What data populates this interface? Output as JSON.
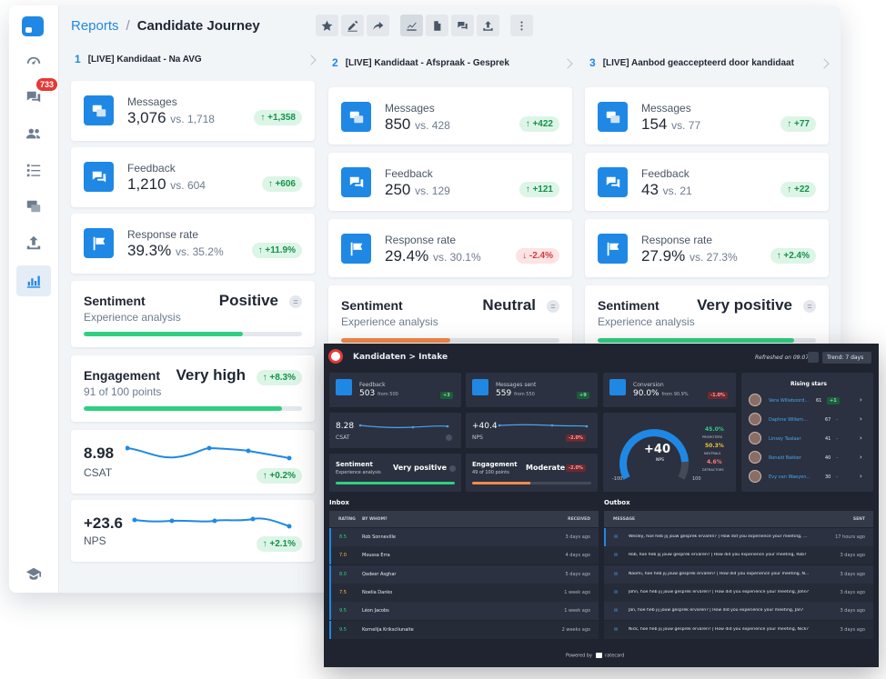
{
  "breadcrumb": {
    "link": "Reports",
    "separator": "/",
    "title": "Candidate Journey"
  },
  "sidebar": {
    "notification_count": "733"
  },
  "stages": [
    {
      "num": "1",
      "title": "[LIVE] Kandidaat - Na AVG"
    },
    {
      "num": "2",
      "title": "[LIVE] Kandidaat - Afspraak - Gesprek"
    },
    {
      "num": "3",
      "title": "[LIVE] Aanbod geaccepteerd door kandidaat"
    }
  ],
  "columns": [
    {
      "messages": {
        "label": "Messages",
        "value": "3,076",
        "vs": "vs. 1,718",
        "delta": "↑ +1,358"
      },
      "feedback": {
        "label": "Feedback",
        "value": "1,210",
        "vs": "vs. 604",
        "delta": "↑ +606"
      },
      "response": {
        "label": "Response rate",
        "value": "39.3%",
        "vs": "vs. 35.2%",
        "delta": "↑ +11.9%"
      },
      "sentiment": {
        "title": "Sentiment",
        "sub": "Experience analysis",
        "value": "Positive",
        "fill": 0.73
      },
      "engagement": {
        "title": "Engagement",
        "sub": "91 of 100 points",
        "value": "Very high",
        "delta": "↑ +8.3%",
        "fill": 0.91
      },
      "csat": {
        "value": "8.98",
        "label": "CSAT",
        "delta": "↑ +0.2%"
      },
      "nps": {
        "value": "+23.6",
        "label": "NPS",
        "delta": "↑ +2.1%"
      }
    },
    {
      "messages": {
        "label": "Messages",
        "value": "850",
        "vs": "vs. 428",
        "delta": "↑ +422"
      },
      "feedback": {
        "label": "Feedback",
        "value": "250",
        "vs": "vs. 129",
        "delta": "↑ +121"
      },
      "response": {
        "label": "Response rate",
        "value": "29.4%",
        "vs": "vs. 30.1%",
        "delta": "↓ -2.4%"
      },
      "sentiment": {
        "title": "Sentiment",
        "sub": "Experience analysis",
        "value": "Neutral",
        "fill": 0.5
      }
    },
    {
      "messages": {
        "label": "Messages",
        "value": "154",
        "vs": "vs. 77",
        "delta": "↑ +77"
      },
      "feedback": {
        "label": "Feedback",
        "value": "43",
        "vs": "vs. 21",
        "delta": "↑ +22"
      },
      "response": {
        "label": "Response rate",
        "value": "27.9%",
        "vs": "vs. 27.3%",
        "delta": "↑ +2.4%"
      },
      "sentiment": {
        "title": "Sentiment",
        "sub": "Experience analysis",
        "value": "Very positive",
        "fill": 0.9
      }
    }
  ],
  "dark": {
    "title": "Kandidaten > Intake",
    "refreshed": "Refreshed on 09:07:53",
    "trend": "Trend: 7 days",
    "feedback": {
      "label": "Feedback",
      "value": "503",
      "vs": "from 500",
      "delta": "+3"
    },
    "messages_sent": {
      "label": "Messages sent",
      "value": "559",
      "vs": "from 550",
      "delta": "+9"
    },
    "conversion": {
      "label": "Conversion",
      "value": "90.0%",
      "vs": "from 90.9%",
      "delta": "-1.0%"
    },
    "csat": {
      "value": "8.28",
      "label": "CSAT"
    },
    "nps_small": {
      "value": "+40.4",
      "label": "NPS",
      "delta": "-2.0%"
    },
    "sentiment": {
      "title": "Sentiment",
      "sub": "Experience analysis",
      "value": "Very positive"
    },
    "engagement": {
      "title": "Engagement",
      "sub": "49 of 100 points",
      "value": "Moderate",
      "delta": "-2.0%"
    },
    "gauge": {
      "value": "+40",
      "label": "NPS",
      "min": "-100",
      "max": "100",
      "promoters": "45.0%",
      "promoters_label": "PROMOTERS",
      "neutrals": "50.3%",
      "neutrals_label": "NEUTRALS",
      "detractors": "4.6%",
      "detractors_label": "DETRACTORS"
    },
    "rising_stars": {
      "title": "Rising stars",
      "items": [
        {
          "name": "Vera Willeboord...",
          "score": "61",
          "delta": "+1"
        },
        {
          "name": "Daphne Willem...",
          "score": "67",
          "delta": "–"
        },
        {
          "name": "Linsey Taalaar",
          "score": "41",
          "delta": "–"
        },
        {
          "name": "Ronald Bakker",
          "score": "40",
          "delta": "–"
        },
        {
          "name": "Evy van Waeyen...",
          "score": "30",
          "delta": "–"
        }
      ]
    },
    "inbox": {
      "title": "Inbox",
      "headers": {
        "rating": "RATING",
        "by": "BY WHOM?",
        "received": "RECEIVED"
      },
      "rows": [
        {
          "rating": "8.5",
          "name": "Rob Sonneville",
          "time": "3 days ago"
        },
        {
          "rating": "7.0",
          "name": "Moussa Erra",
          "time": "4 days ago"
        },
        {
          "rating": "8.0",
          "name": "Qadeer Asghar",
          "time": "5 days ago"
        },
        {
          "rating": "7.5",
          "name": "Noelia Danko",
          "time": "1 week ago"
        },
        {
          "rating": "9.5",
          "name": "Léon Jacobs",
          "time": "1 week ago"
        },
        {
          "rating": "9.5",
          "name": "Kornelija Krikscliunaite",
          "time": "2 weeks ago"
        }
      ]
    },
    "outbox": {
      "title": "Outbox",
      "headers": {
        "message": "MESSAGE",
        "sent": "SENT"
      },
      "rows": [
        {
          "msg": "Wesley, hoe heb jij jouw gesprek ervaren? | How did you experience your meeting, ...",
          "time": "17 hours ago"
        },
        {
          "msg": "Rob, hoe heb jij jouw gesprek ervaren? | How did you experience your meeting, Rob?",
          "time": "3 days ago"
        },
        {
          "msg": "Naomi, hoe heb jij jouw gesprek ervaren? | How did you experience your meeting, N...",
          "time": "3 days ago"
        },
        {
          "msg": "John, hoe heb jij jouw gesprek ervaren? | How did you experience your meeting, John?",
          "time": "3 days ago"
        },
        {
          "msg": "Jan, hoe heb jij jouw gesprek ervaren? | How did you experience your meeting, Jan?",
          "time": "3 days ago"
        },
        {
          "msg": "Nick, hoe heb jij jouw gesprek ervaren? | How did you experience your meeting, Nick?",
          "time": "3 days ago"
        }
      ]
    },
    "footer": {
      "powered": "Powered by",
      "brand": "ratecard"
    }
  }
}
